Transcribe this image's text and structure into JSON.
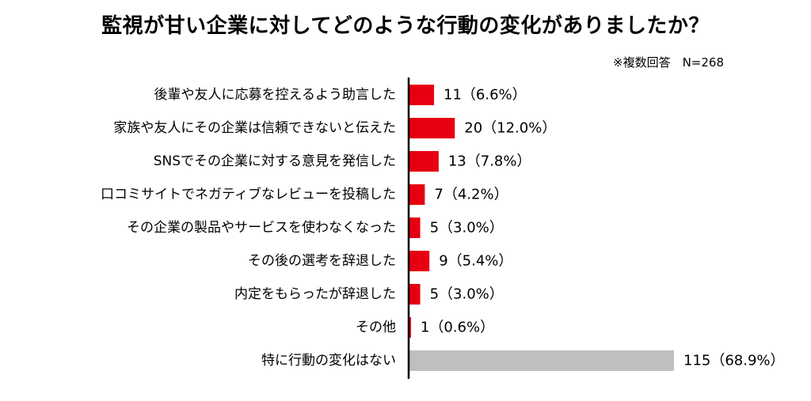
{
  "chart_data": {
    "type": "bar",
    "orientation": "horizontal",
    "title": "監視が甘い企業に対してどのような行動の変化がありましたか？",
    "subtitle": "※複数回答　N=268",
    "categories": [
      "後輩や友人に応募を控えるよう助言した",
      "家族や友人にその企業は信頼できないと伝えた",
      "SNSでその企業に対する意見を発信した",
      "口コミサイトでネガティブなレビューを投稿した",
      "その企業の製品やサービスを使わなくなった",
      "その後の選考を辞退した",
      "内定をもらったが辞退した",
      "その他",
      "特に行動の変化はない"
    ],
    "values": [
      11,
      20,
      13,
      7,
      5,
      9,
      5,
      1,
      115
    ],
    "percentages": [
      6.6,
      12.0,
      7.8,
      4.2,
      3.0,
      5.4,
      3.0,
      0.6,
      68.9
    ],
    "value_labels": [
      "11（6.6%）",
      "20（12.0%）",
      "13（7.8%）",
      "7（4.2%）",
      "5（3.0%）",
      "9（5.4%）",
      "5（3.0%）",
      "1（0.6%）",
      "115（68.9%）"
    ],
    "bar_colors": [
      "#e60012",
      "#e60012",
      "#e60012",
      "#e60012",
      "#e60012",
      "#e60012",
      "#e60012",
      "#e60012",
      "#bfbfbf"
    ],
    "xlim": [
      0,
      115
    ],
    "grid": false,
    "legend": "none"
  }
}
